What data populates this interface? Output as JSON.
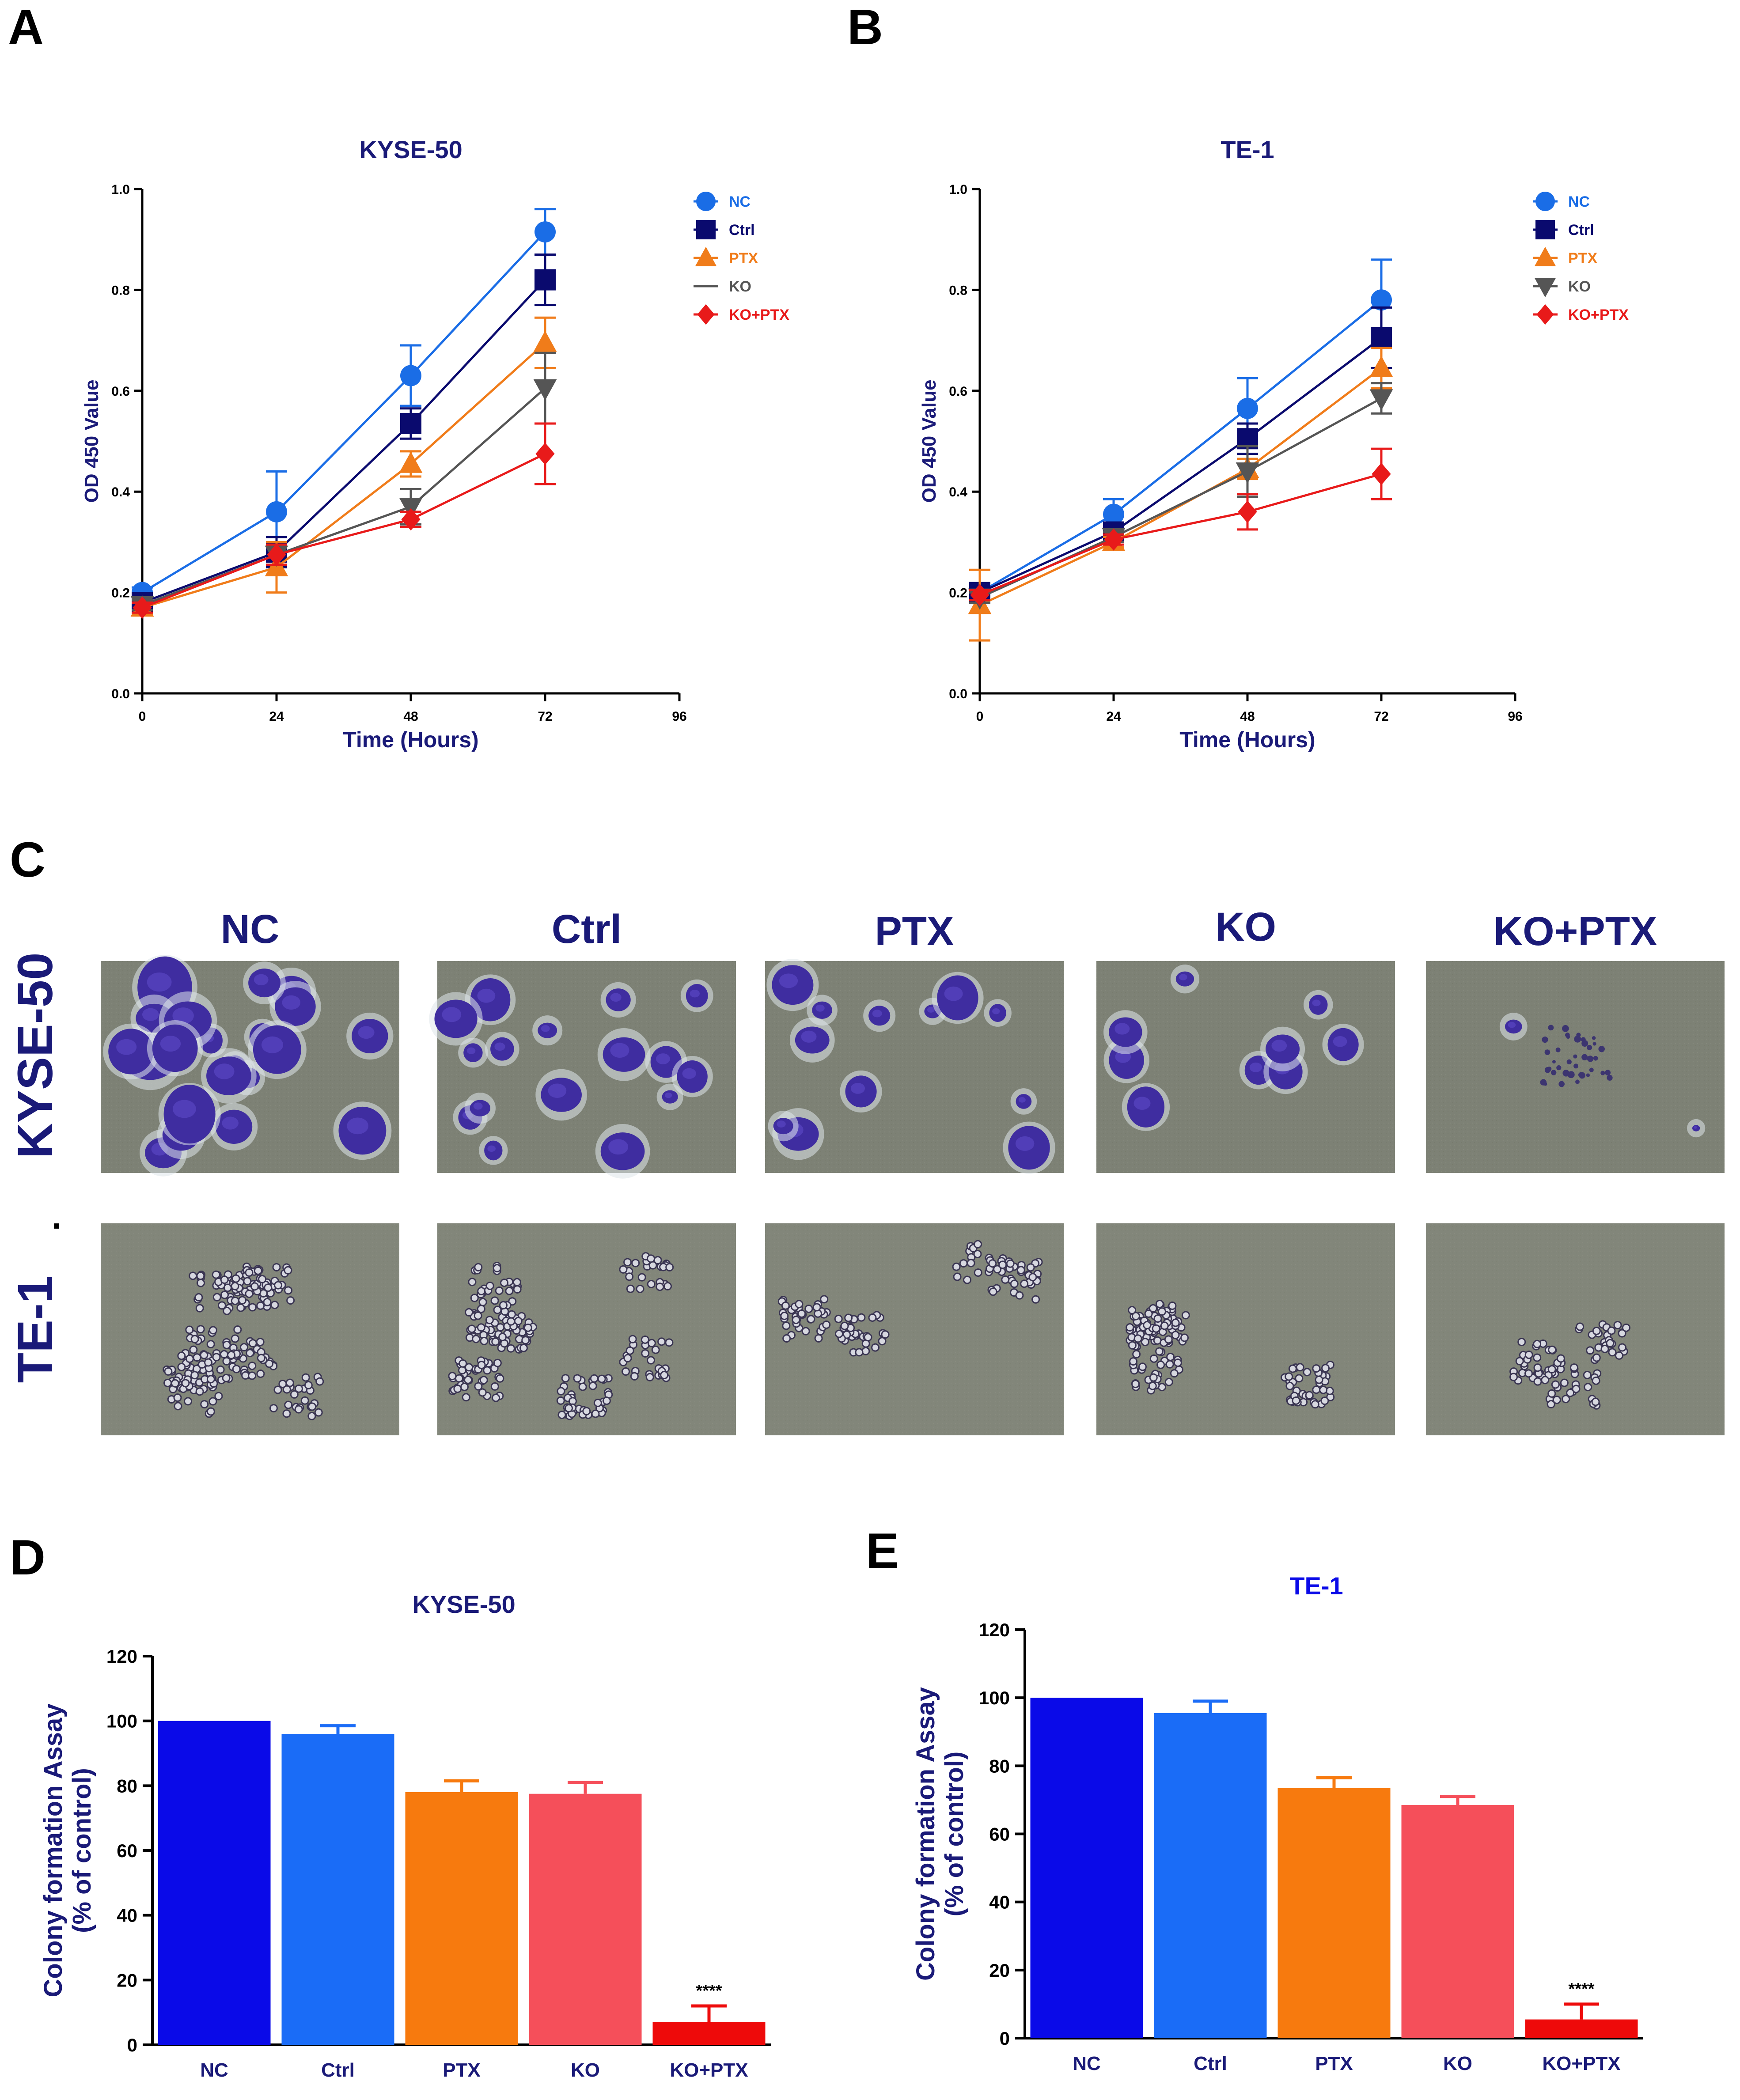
{
  "panel_letters": [
    "A",
    "B",
    "C",
    "D",
    "E"
  ],
  "panel_c": {
    "column_labels": [
      "NC",
      "Ctrl",
      "PTX",
      "KO",
      "KO+PTX"
    ],
    "row_labels": [
      "KYSE-50",
      "TE-1"
    ],
    "dot": "."
  },
  "colors": {
    "NC": "#1a6de6",
    "Ctrl": "#0a0a6e",
    "PTX": "#f07c1a",
    "KO": "#555555",
    "KO_PTX": "#e81a1a",
    "axis_label": "#1a1a78",
    "bar_NC": "#0a0ae8",
    "bar_Ctrl": "#1a6cf7",
    "bar_PTX": "#f77a0e",
    "bar_KO": "#f54f5a",
    "bar_KO_PTX": "#ee0a0a"
  },
  "chart_data": [
    {
      "id": "A",
      "type": "line",
      "title": "KYSE-50",
      "xlabel": "Time (Hours)",
      "ylabel": "OD 450 Value",
      "xlim": [
        0,
        96
      ],
      "ylim": [
        0.0,
        1.0
      ],
      "xticks": [
        "0",
        "24",
        "48",
        "72",
        "96"
      ],
      "yticks": [
        "0.0",
        "0.2",
        "0.4",
        "0.6",
        "0.8",
        "1.0"
      ],
      "x": [
        0,
        24,
        48,
        72
      ],
      "legend": "top-right",
      "series": [
        {
          "name": "NC",
          "marker": "circle",
          "values": [
            0.2,
            0.36,
            0.63,
            0.915
          ],
          "err": [
            0.01,
            0.08,
            0.06,
            0.045
          ]
        },
        {
          "name": "Ctrl",
          "marker": "square",
          "values": [
            0.18,
            0.28,
            0.535,
            0.82
          ],
          "err": [
            0.01,
            0.03,
            0.03,
            0.05
          ]
        },
        {
          "name": "PTX",
          "marker": "triangle-up",
          "values": [
            0.17,
            0.25,
            0.455,
            0.695
          ],
          "err": [
            0.015,
            0.05,
            0.025,
            0.05
          ]
        },
        {
          "name": "KO",
          "marker": "triangle-down",
          "values": [
            0.175,
            0.275,
            0.37,
            0.605
          ],
          "err": [
            0.01,
            0.02,
            0.035,
            0.07
          ]
        },
        {
          "name": "KO+PTX",
          "marker": "diamond",
          "values": [
            0.17,
            0.275,
            0.345,
            0.475
          ],
          "err": [
            0.01,
            0.02,
            0.015,
            0.06
          ]
        }
      ]
    },
    {
      "id": "B",
      "type": "line",
      "title": "TE-1",
      "xlabel": "Time (Hours)",
      "ylabel": "OD 450 Value",
      "xlim": [
        0,
        96
      ],
      "ylim": [
        0.0,
        1.0
      ],
      "xticks": [
        "0",
        "24",
        "48",
        "72",
        "96"
      ],
      "yticks": [
        "0.0",
        "0.2",
        "0.4",
        "0.6",
        "0.8",
        "1.0"
      ],
      "x": [
        0,
        24,
        48,
        72
      ],
      "legend": "top-right",
      "series": [
        {
          "name": "NC",
          "marker": "circle",
          "values": [
            0.2,
            0.355,
            0.565,
            0.78
          ],
          "err": [
            0.01,
            0.03,
            0.06,
            0.08
          ]
        },
        {
          "name": "Ctrl",
          "marker": "square",
          "values": [
            0.2,
            0.32,
            0.505,
            0.705
          ],
          "err": [
            0.01,
            0.015,
            0.03,
            0.06
          ]
        },
        {
          "name": "PTX",
          "marker": "triangle-up",
          "values": [
            0.175,
            0.3,
            0.445,
            0.645
          ],
          "err": [
            0.07,
            0.01,
            0.02,
            0.04
          ]
        },
        {
          "name": "KO",
          "marker": "triangle-down",
          "values": [
            0.19,
            0.31,
            0.44,
            0.585
          ],
          "err": [
            0.01,
            0.01,
            0.05,
            0.03
          ]
        },
        {
          "name": "KO+PTX",
          "marker": "diamond",
          "values": [
            0.195,
            0.305,
            0.36,
            0.435
          ],
          "err": [
            0.01,
            0.01,
            0.035,
            0.05
          ]
        }
      ]
    },
    {
      "id": "D",
      "type": "bar",
      "title": "KYSE-50",
      "xlabel": "",
      "ylabel": [
        "Colony formation Assay",
        "(% of control)"
      ],
      "ylim": [
        0,
        120
      ],
      "yticks": [
        "0",
        "20",
        "40",
        "60",
        "80",
        "100",
        "120"
      ],
      "categories": [
        "NC",
        "Ctrl",
        "PTX",
        "KO",
        "KO+PTX"
      ],
      "values": [
        100,
        96,
        78,
        77.5,
        7
      ],
      "err": [
        0,
        2.5,
        3.5,
        3.5,
        5
      ],
      "annotations": [
        {
          "category": "KO+PTX",
          "text": "****"
        }
      ]
    },
    {
      "id": "E",
      "type": "bar",
      "title": "TE-1",
      "xlabel": "",
      "ylabel": [
        "Colony formation Assay",
        "(% of control)"
      ],
      "ylim": [
        0,
        120
      ],
      "yticks": [
        "0",
        "20",
        "40",
        "60",
        "80",
        "100",
        "120"
      ],
      "categories": [
        "NC",
        "Ctrl",
        "PTX",
        "KO",
        "KO+PTX"
      ],
      "values": [
        100,
        95.5,
        73.5,
        68.5,
        5.5
      ],
      "err": [
        0,
        3.5,
        3,
        2.5,
        4.5
      ],
      "annotations": [
        {
          "category": "KO+PTX",
          "text": "****"
        }
      ]
    }
  ]
}
